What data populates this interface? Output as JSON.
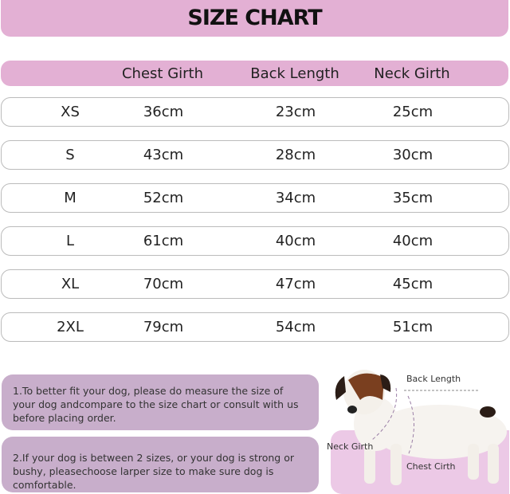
{
  "title": "SIZE CHART",
  "columns": [
    "",
    "Chest Girth",
    "Back Length",
    "Neck Girth"
  ],
  "rows": [
    [
      "XS",
      "36cm",
      "23cm",
      "25cm"
    ],
    [
      "S",
      "43cm",
      "28cm",
      "30cm"
    ],
    [
      "M",
      "52cm",
      "34cm",
      "35cm"
    ],
    [
      "L",
      "61cm",
      "40cm",
      "40cm"
    ],
    [
      "XL",
      "70cm",
      "47cm",
      "45cm"
    ],
    [
      "2XL",
      "79cm",
      "54cm",
      "51cm"
    ]
  ],
  "notes": [
    "1.To better fit your dog, please do measure the size of your dog andcompare to the size chart or consult with us before placing order.",
    "2.If your dog is between 2 sizes, or your dog is strong or bushy, pleasechoose larper size to make sure dog is comfortable."
  ],
  "diagram": {
    "back_length": "Back Length",
    "neck_girth": "Neck Girth",
    "chest_girth": "Chest Cirth"
  },
  "colors": {
    "header": "#e3b0d4",
    "notes": "#c8aecb",
    "dog_bg": "#ecc9e6"
  }
}
